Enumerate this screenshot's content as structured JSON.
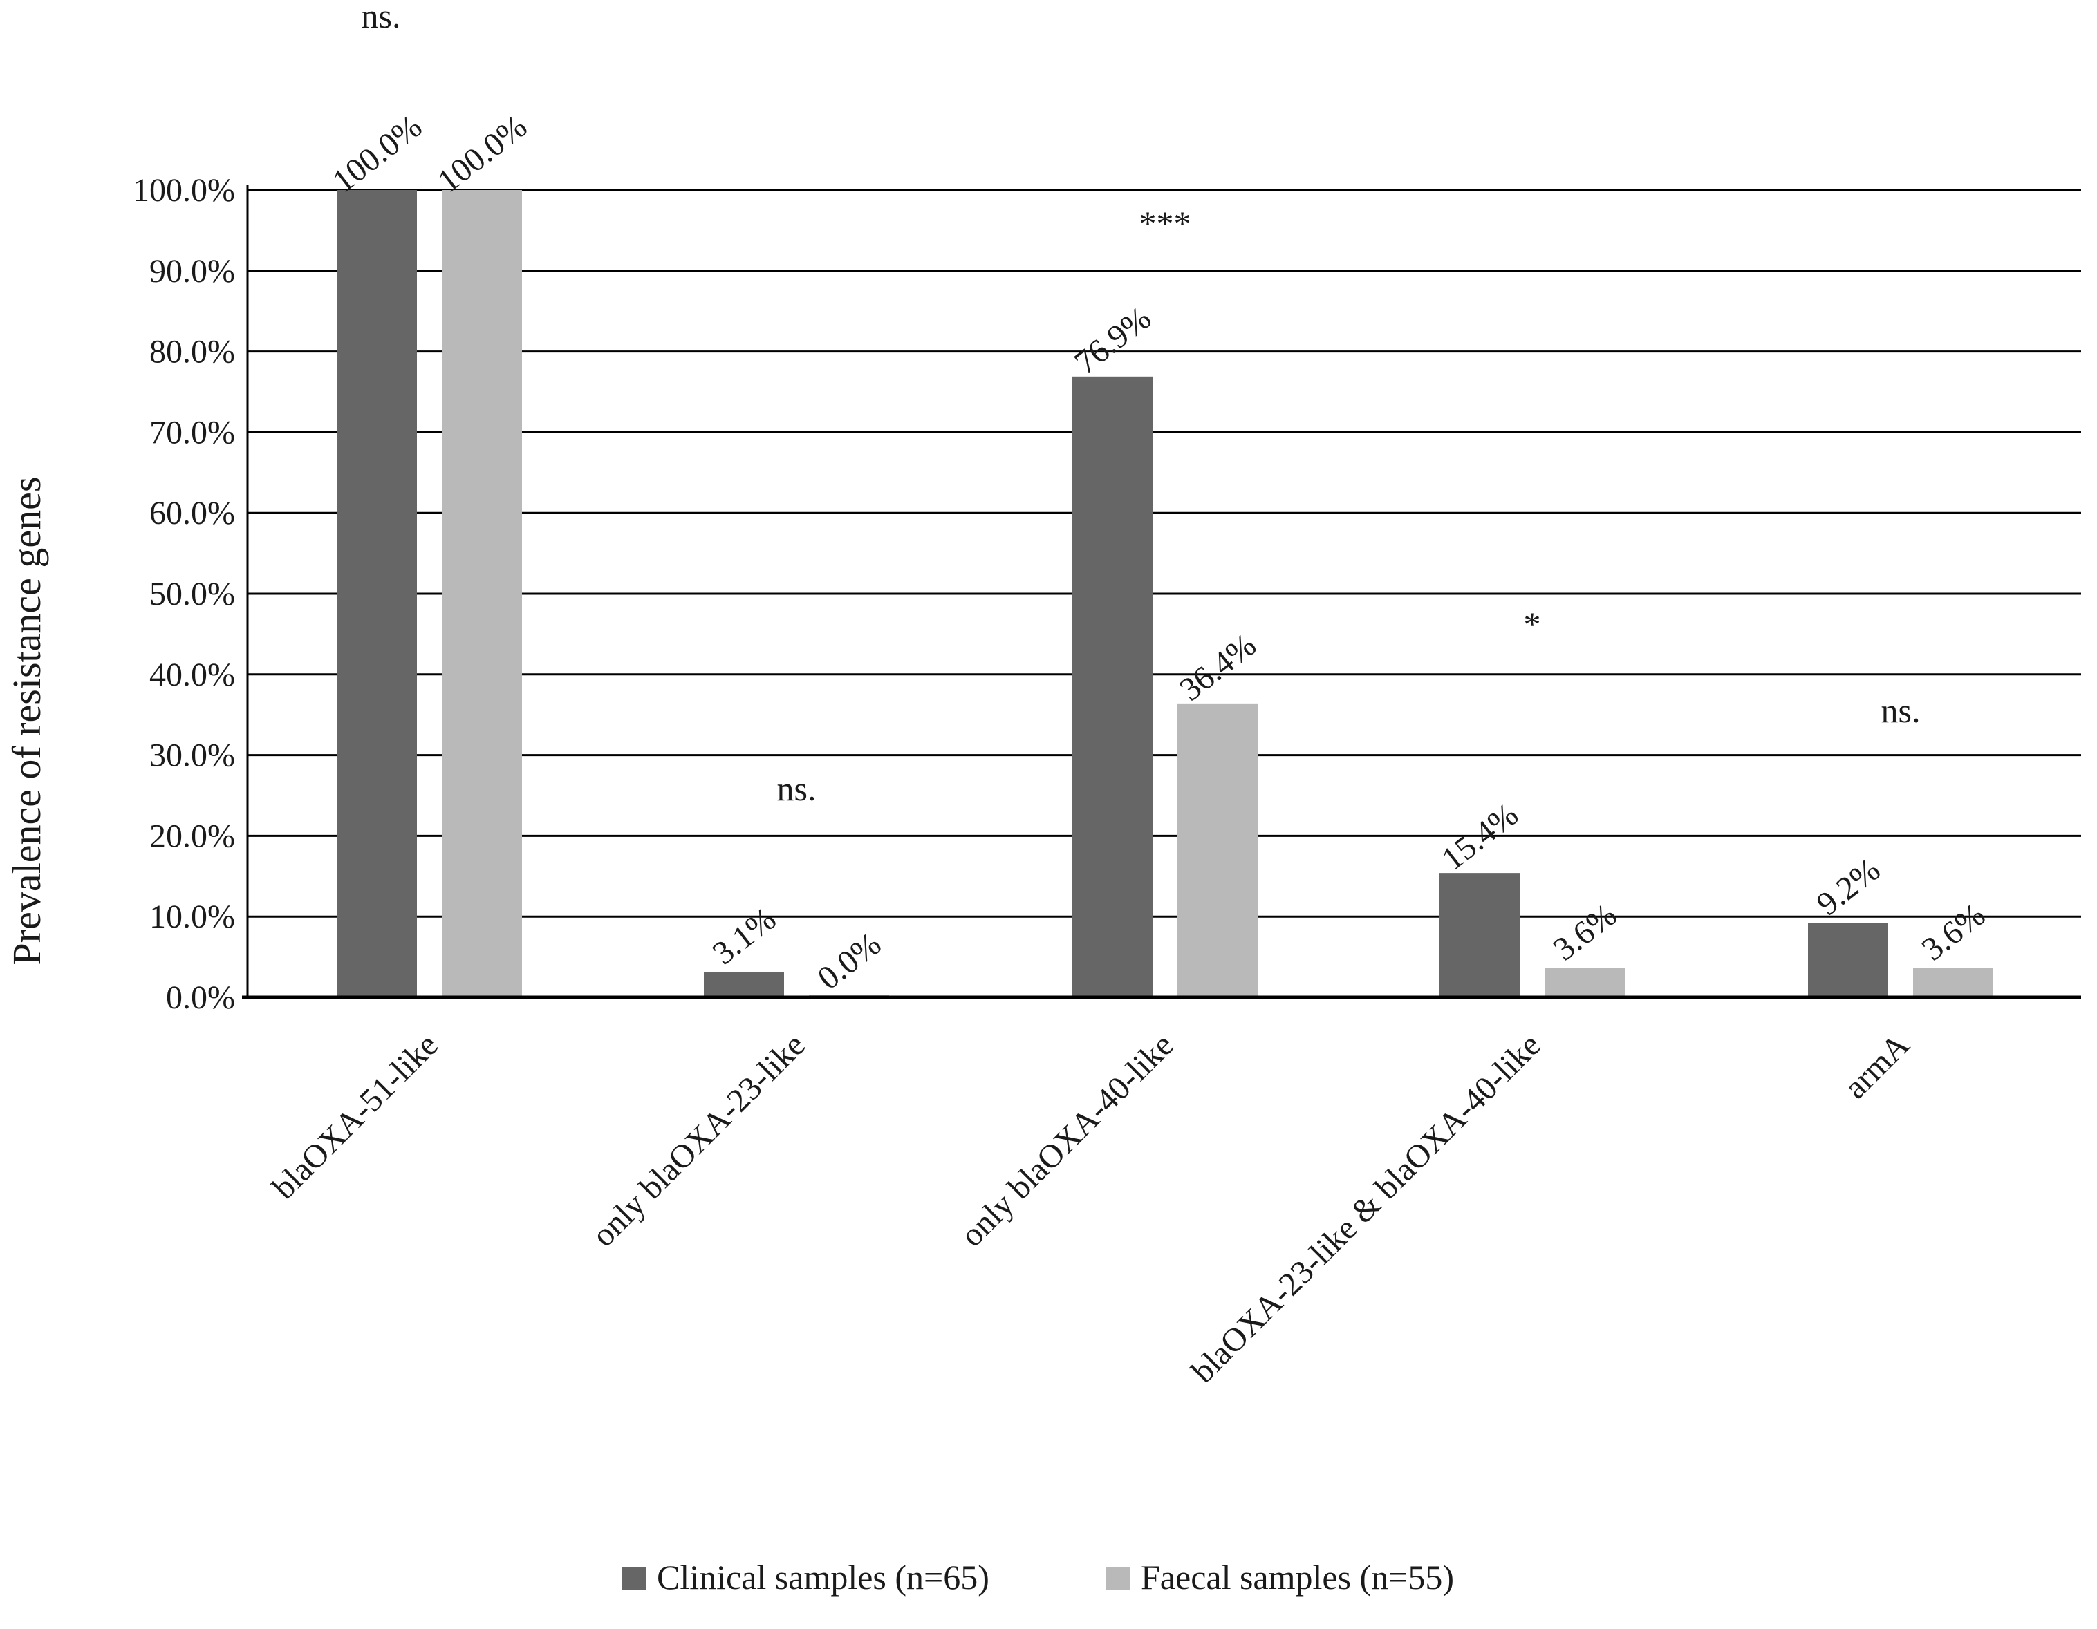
{
  "chart_data": {
    "type": "bar",
    "ylabel": "Prevalence of resistance genes",
    "ylim": [
      0,
      100
    ],
    "yticks": [
      0,
      10,
      20,
      30,
      40,
      50,
      60,
      70,
      80,
      90,
      100
    ],
    "ytick_labels": [
      "0.0%",
      "10.0%",
      "20.0%",
      "30.0%",
      "40.0%",
      "50.0%",
      "60.0%",
      "70.0%",
      "80.0%",
      "90.0%",
      "100.0%"
    ],
    "grid": true,
    "legend_position": "bottom",
    "categories": [
      "blaOXA-51-like",
      "only blaOXA-23-like",
      "only blaOXA-40-like",
      "blaOXA-23-like & blaOXA-40-like",
      "armA"
    ],
    "series": [
      {
        "name": "Clinical samples (n=65)",
        "color": "#666666",
        "values": [
          100.0,
          3.1,
          76.9,
          15.4,
          9.2
        ],
        "labels": [
          "100.0%",
          "3.1%",
          "76.9%",
          "15.4%",
          "9.2%"
        ]
      },
      {
        "name": "Faecal samples (n=55)",
        "color": "#b9b9b9",
        "values": [
          100.0,
          0.0,
          36.4,
          3.6,
          3.6
        ],
        "labels": [
          "100.0%",
          "0.0%",
          "36.4%",
          "3.6%",
          "3.6%"
        ]
      }
    ],
    "significance": [
      "ns.",
      "ns.",
      "***",
      "*",
      "ns."
    ]
  }
}
